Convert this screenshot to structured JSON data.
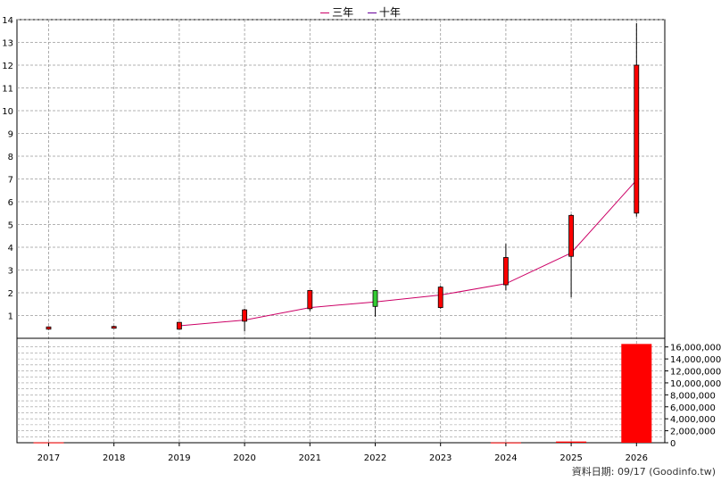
{
  "legend": [
    {
      "name": "三年",
      "color": "#cc0066"
    },
    {
      "name": "十年",
      "color": "#660099"
    }
  ],
  "footer": {
    "text": "資料日期: 09/17  (Goodinfo.tw)"
  },
  "chart_data": [
    {
      "type": "candlestick",
      "categories": [
        "2017",
        "2018",
        "2019",
        "2020",
        "2021",
        "2022",
        "2023",
        "2024",
        "2025",
        "2026"
      ],
      "ylim": [
        0,
        14
      ],
      "yticks": [
        1,
        2,
        3,
        4,
        5,
        6,
        7,
        8,
        9,
        10,
        11,
        12,
        13,
        14
      ],
      "grid": true,
      "candles": [
        {
          "x": "2017",
          "open": 0.4,
          "close": 0.5,
          "high": 0.52,
          "low": 0.38,
          "color": "#ff0000"
        },
        {
          "x": "2018",
          "open": 0.45,
          "close": 0.52,
          "high": 0.55,
          "low": 0.43,
          "color": "#ff0000"
        },
        {
          "x": "2019",
          "open": 0.4,
          "close": 0.7,
          "high": 0.72,
          "low": 0.38,
          "color": "#ff0000"
        },
        {
          "x": "2020",
          "open": 0.75,
          "close": 1.25,
          "high": 1.3,
          "low": 0.3,
          "color": "#ff0000"
        },
        {
          "x": "2021",
          "open": 1.3,
          "close": 2.1,
          "high": 2.1,
          "low": 1.2,
          "color": "#ff0000"
        },
        {
          "x": "2022",
          "open": 2.1,
          "close": 1.4,
          "high": 2.1,
          "low": 0.95,
          "color": "#33cc33"
        },
        {
          "x": "2023",
          "open": 1.35,
          "close": 2.25,
          "high": 2.3,
          "low": 1.3,
          "color": "#ff0000"
        },
        {
          "x": "2024",
          "open": 2.35,
          "close": 3.55,
          "high": 4.15,
          "low": 2.1,
          "color": "#ff0000"
        },
        {
          "x": "2025",
          "open": 3.6,
          "close": 5.4,
          "high": 5.45,
          "low": 1.8,
          "color": "#ff0000"
        },
        {
          "x": "2026",
          "open": 5.5,
          "close": 12.0,
          "high": 13.85,
          "low": 5.35,
          "color": "#ff0000"
        }
      ],
      "series": [
        {
          "name": "三年",
          "color": "#cc0066",
          "x": [
            "2019",
            "2020",
            "2021",
            "2022",
            "2023",
            "2024",
            "2025",
            "2026"
          ],
          "values": [
            0.55,
            0.8,
            1.35,
            1.6,
            1.9,
            2.4,
            3.75,
            6.95
          ]
        }
      ]
    },
    {
      "type": "bar",
      "categories": [
        "2017",
        "2018",
        "2019",
        "2020",
        "2021",
        "2022",
        "2023",
        "2024",
        "2025",
        "2026"
      ],
      "values": [
        60000,
        0,
        0,
        0,
        0,
        0,
        0,
        50000,
        200000,
        16500000
      ],
      "ylim": [
        0,
        17000000
      ],
      "yticks": [
        "0",
        "2,000,000",
        "4,000,000",
        "6,000,000",
        "8,000,000",
        "10,000,000",
        "12,000,000",
        "14,000,000",
        "16,000,000"
      ],
      "color": "#ff0000",
      "grid": true
    }
  ]
}
